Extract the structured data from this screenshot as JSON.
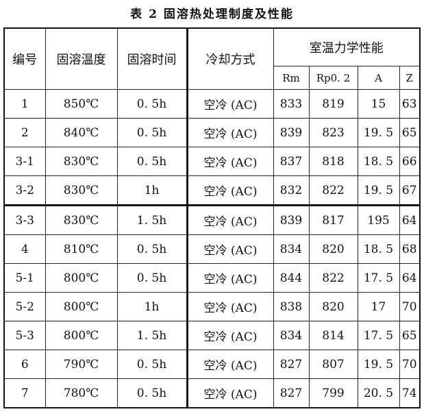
{
  "title": "表 2 固溶热处理制度及性能",
  "headers": {
    "id": "编号",
    "temp": "固溶温度",
    "time": "固溶时间",
    "cooling": "冷却方式",
    "props": "室温力学性能",
    "rm": "Rm",
    "rp": "Rp0. 2",
    "a": "A",
    "z": "Z"
  },
  "rows": [
    [
      "1",
      "850℃",
      "0. 5h",
      "空冷 (AC)",
      "833",
      "819",
      "15",
      "63"
    ],
    [
      "2",
      "840℃",
      "0. 5h",
      "空冷 (AC)",
      "839",
      "823",
      "19. 5",
      "65"
    ],
    [
      "3-1",
      "830℃",
      "0. 5h",
      "空冷 (AC)",
      "837",
      "818",
      "18. 5",
      "66"
    ],
    [
      "3-2",
      "830℃",
      "1h",
      "空冷 (AC)",
      "832",
      "822",
      "19. 5",
      "67"
    ],
    [
      "3-3",
      "830℃",
      "1. 5h",
      "空冷 (AC)",
      "839",
      "817",
      "195",
      "64"
    ],
    [
      "4",
      "810℃",
      "0. 5h",
      "空冷 (AC)",
      "834",
      "820",
      "18. 5",
      "68"
    ],
    [
      "5-1",
      "800℃",
      "0. 5h",
      "空冷 (AC)",
      "844",
      "822",
      "17. 5",
      "64"
    ],
    [
      "5-2",
      "800℃",
      "1h",
      "空冷 (AC)",
      "838",
      "820",
      "17",
      "70"
    ],
    [
      "5-3",
      "800℃",
      "1. 5h",
      "空冷 (AC)",
      "834",
      "814",
      "17. 5",
      "65"
    ],
    [
      "6",
      "790℃",
      "0. 5h",
      "空冷 (AC)",
      "827",
      "807",
      "19. 5",
      "70"
    ],
    [
      "7",
      "780℃",
      "0. 5h",
      "空冷 (AC)",
      "827",
      "799",
      "20. 5",
      "74"
    ]
  ]
}
